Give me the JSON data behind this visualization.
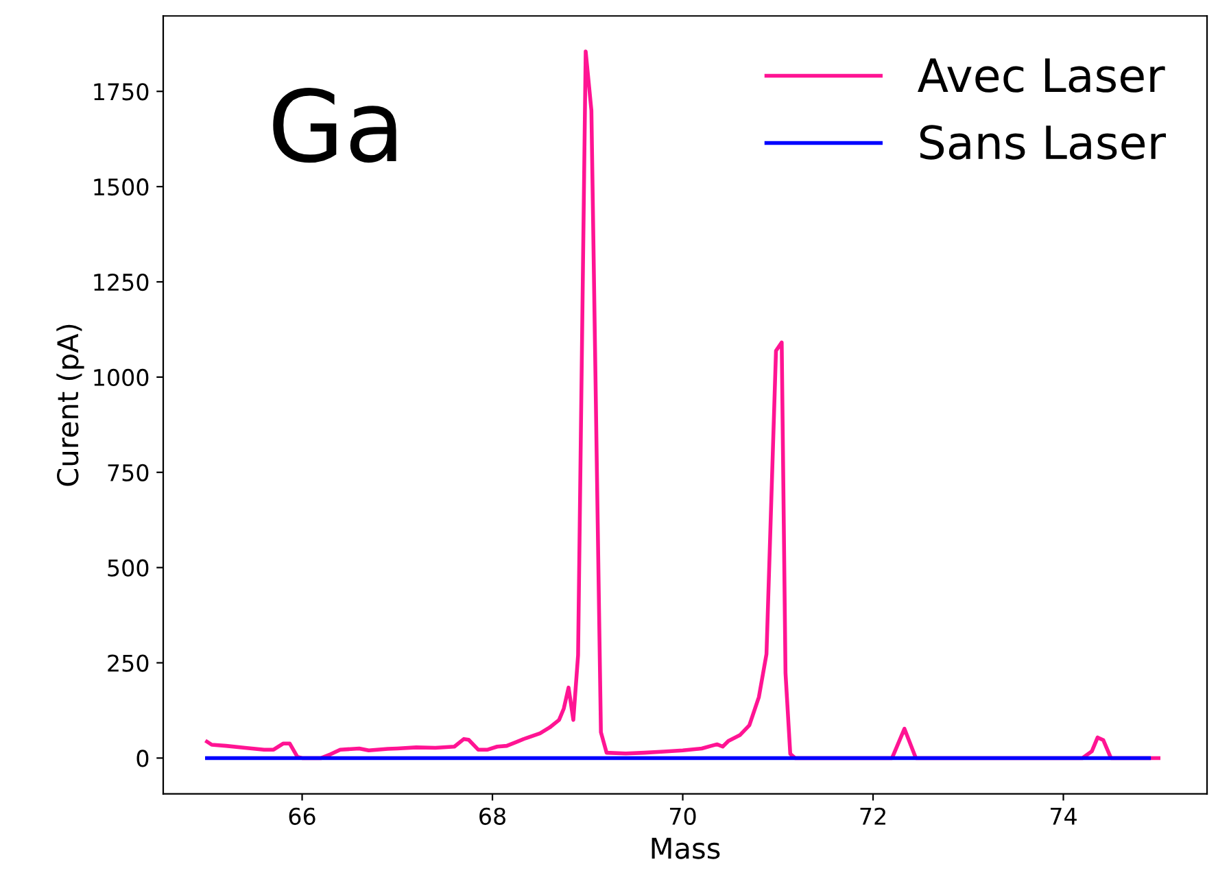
{
  "chart_data": {
    "type": "line",
    "xlabel": "Mass",
    "ylabel": "Curent (pA)",
    "annotations": [
      "Ga"
    ],
    "xlim": [
      64.54,
      75.51
    ],
    "ylim": [
      -94,
      1948
    ],
    "xticks": [
      66,
      68,
      70,
      72,
      74
    ],
    "yticks": [
      0,
      250,
      500,
      750,
      1000,
      1250,
      1500,
      1750
    ],
    "grid": false,
    "legend": "top right",
    "marker": "none",
    "line_style": "solid",
    "series": [
      {
        "name": "Avec Laser",
        "color": "#ff1493",
        "x": [
          65.0,
          65.05,
          65.2,
          65.4,
          65.6,
          65.7,
          65.8,
          65.87,
          65.95,
          66.0,
          66.2,
          66.3,
          66.4,
          66.6,
          66.7,
          66.9,
          67.0,
          67.2,
          67.4,
          67.6,
          67.7,
          67.75,
          67.85,
          67.95,
          68.05,
          68.15,
          68.25,
          68.35,
          68.5,
          68.6,
          68.7,
          68.75,
          68.8,
          68.85,
          68.9,
          68.98,
          69.04,
          69.14,
          69.2,
          69.4,
          69.6,
          69.8,
          70.0,
          70.2,
          70.3,
          70.36,
          70.42,
          70.48,
          70.6,
          70.7,
          70.8,
          70.88,
          70.98,
          71.04,
          71.08,
          71.13,
          71.18,
          72.2,
          72.33,
          72.45,
          74.2,
          74.3,
          74.36,
          74.42,
          74.5,
          75.0
        ],
        "values": [
          43,
          35,
          32,
          27,
          22,
          22,
          38,
          38,
          3,
          0,
          0,
          10,
          22,
          25,
          20,
          24,
          25,
          28,
          27,
          30,
          50,
          48,
          22,
          22,
          30,
          32,
          42,
          52,
          65,
          80,
          100,
          130,
          185,
          100,
          270,
          1855,
          1700,
          68,
          14,
          12,
          14,
          17,
          20,
          25,
          32,
          36,
          30,
          45,
          60,
          86,
          160,
          273,
          1069,
          1091,
          223,
          11,
          0,
          0,
          77,
          0,
          0,
          18,
          54,
          47,
          0,
          0
        ]
      },
      {
        "name": "Sans Laser",
        "color": "#0000ff",
        "x": [
          65.0,
          74.9
        ],
        "values": [
          0,
          0
        ]
      }
    ]
  }
}
